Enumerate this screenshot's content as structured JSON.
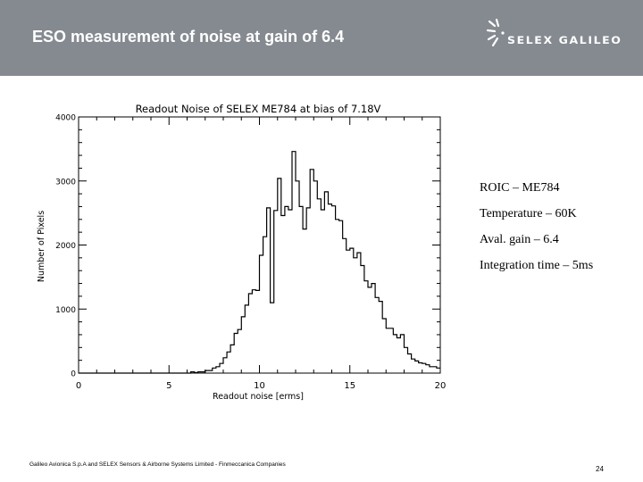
{
  "header": {
    "title": "ESO measurement of noise at gain of 6.4",
    "logo_text": "SELEX GALILEO",
    "background_color": "#858a91"
  },
  "notes": [
    "ROIC – ME784",
    "Temperature – 60K",
    "Aval. gain – 6.4",
    "Integration time – 5ms"
  ],
  "footer": {
    "text": "Galileo Avionica S.p.A and SELEX Sensors & Airborne Systems Limited - Finmeccanica Companies",
    "page_number": "24"
  },
  "chart_data": {
    "type": "bar",
    "style": "step-histogram",
    "title": "Readout Noise of SELEX ME784 at bias of 7.18V",
    "xlabel": "Readout noise [erms]",
    "ylabel": "Number of Pixels",
    "xlim": [
      0,
      20
    ],
    "ylim": [
      0,
      4000
    ],
    "xticks": [
      0,
      5,
      10,
      15,
      20
    ],
    "yticks": [
      0,
      1000,
      2000,
      3000,
      4000
    ],
    "grid": false,
    "legend": null,
    "bin_width": 0.2,
    "bin_start": 0,
    "values": [
      0,
      0,
      0,
      0,
      0,
      0,
      0,
      0,
      0,
      0,
      0,
      0,
      0,
      0,
      0,
      0,
      0,
      0,
      0,
      0,
      0,
      0,
      0,
      0,
      0,
      0,
      0,
      0,
      0,
      0,
      0,
      20,
      10,
      20,
      20,
      40,
      40,
      80,
      100,
      150,
      240,
      330,
      440,
      620,
      680,
      880,
      1060,
      1240,
      1300,
      1290,
      1840,
      2130,
      2580,
      1100,
      2540,
      3040,
      2460,
      2600,
      2550,
      3460,
      3000,
      2600,
      2250,
      2580,
      3180,
      3000,
      2720,
      2550,
      2830,
      2640,
      2610,
      2400,
      2380,
      2100,
      1920,
      1950,
      1800,
      1880,
      1680,
      1440,
      1340,
      1400,
      1180,
      1120,
      850,
      700,
      700,
      600,
      550,
      600,
      400,
      300,
      220,
      190,
      160,
      150,
      130,
      100,
      100,
      80,
      70,
      60,
      60,
      50,
      50,
      45,
      45,
      40,
      35,
      30,
      30,
      25,
      25,
      20,
      20,
      20,
      20,
      15,
      15,
      15,
      15,
      15,
      10,
      10,
      10,
      10,
      10,
      10,
      8,
      8,
      8,
      8,
      8,
      5,
      5,
      5,
      5,
      5,
      5,
      5,
      5,
      5,
      5,
      5,
      5,
      5,
      5,
      5,
      5,
      5,
      5,
      5,
      5,
      5,
      5,
      5,
      5,
      5,
      5,
      5,
      5,
      5,
      5,
      5,
      5,
      5,
      5,
      5,
      5,
      5,
      5,
      5,
      5,
      5,
      5,
      5,
      5,
      5,
      5,
      5,
      5,
      5,
      5,
      5,
      5,
      5,
      5,
      5,
      5,
      5,
      5,
      5,
      5,
      5,
      5,
      5,
      5,
      5,
      5,
      5,
      5,
      5,
      5,
      5,
      5,
      5,
      5,
      5,
      5,
      5,
      5,
      5,
      5
    ]
  }
}
